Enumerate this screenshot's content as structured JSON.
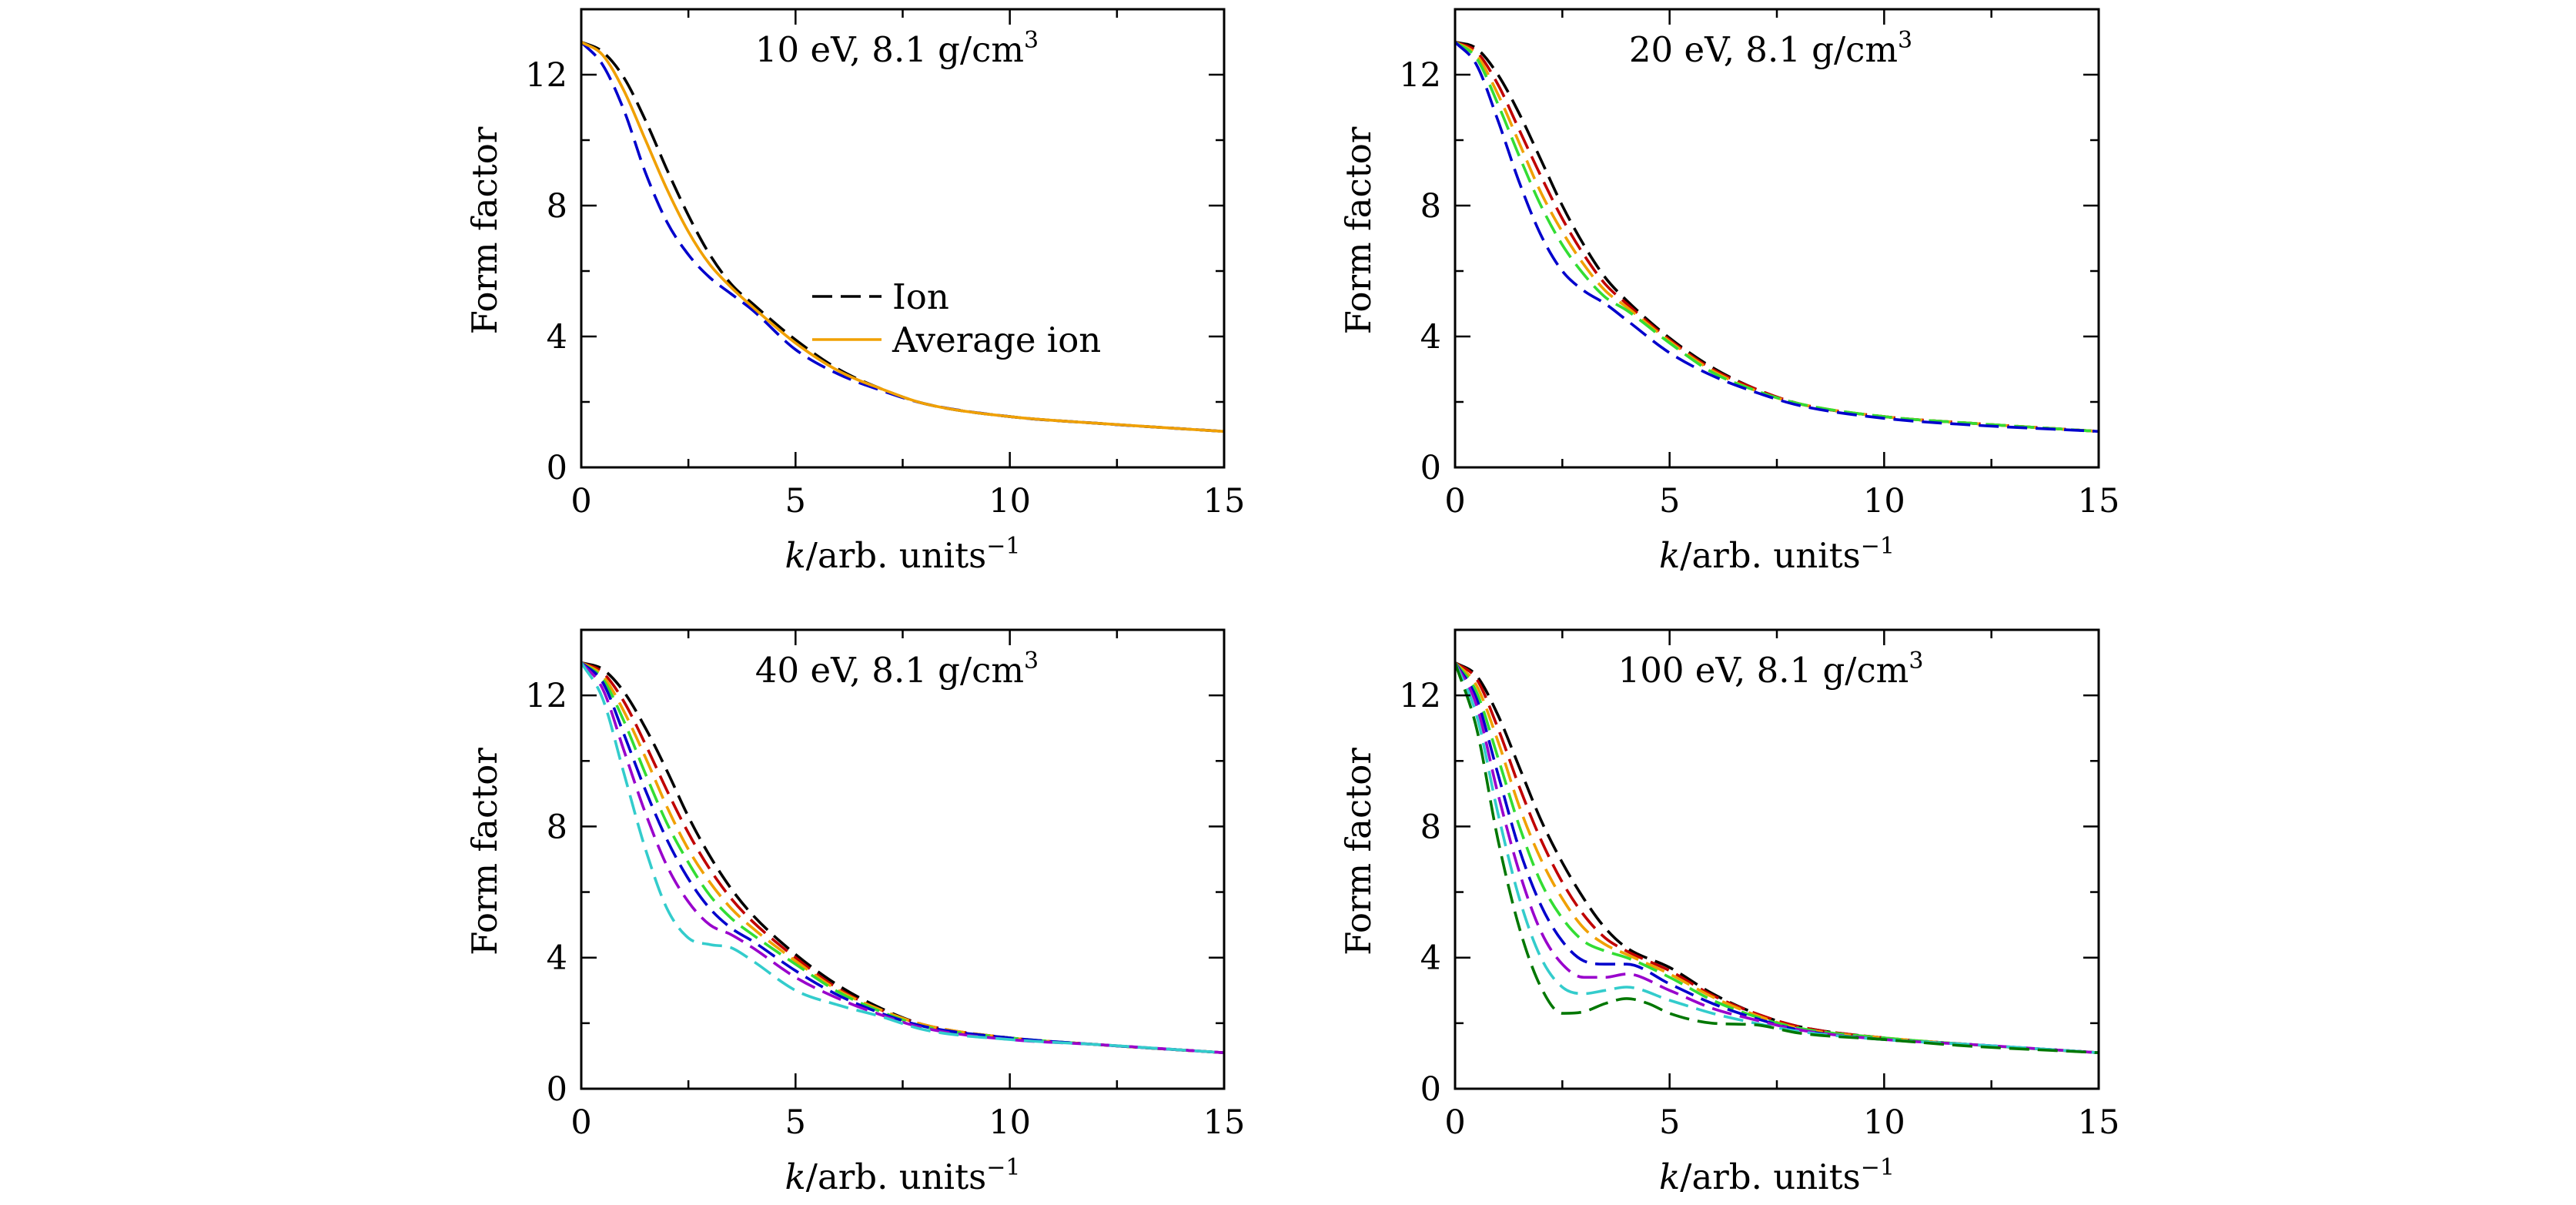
{
  "figure": {
    "legend": {
      "entries": [
        "Ion",
        "Average ion"
      ],
      "placement": "center-right of top-left panel"
    },
    "colors": {
      "black": "#000000",
      "red": "#c00000",
      "orange": "#f0a000",
      "green": "#33dd33",
      "blue": "#0000cc",
      "purple": "#9900cc",
      "cyan": "#33cccc",
      "darkgreen": "#007700"
    }
  },
  "chart_data": [
    {
      "type": "line",
      "title": "10 eV, 8.1 g/cm",
      "title_sup": "3",
      "xlabel": "k",
      "xlabel_rest": "/arb. units",
      "xlabel_sup": "−1",
      "ylabel": "Form factor",
      "xlim": [
        0,
        15
      ],
      "ylim": [
        0,
        14
      ],
      "xticks": [
        "0",
        "5",
        "10",
        "15"
      ],
      "yticks": [
        "0",
        "4",
        "8",
        "12"
      ],
      "grid": false,
      "legend": true,
      "series": [
        {
          "name": "Ion",
          "color": "#000000",
          "style": "dashed",
          "x": [
            0,
            0.5,
            1,
            1.5,
            2,
            2.5,
            3,
            3.5,
            4,
            5,
            6,
            7,
            8,
            10,
            12,
            15
          ],
          "y": [
            13.0,
            12.7,
            11.9,
            10.6,
            9.1,
            7.7,
            6.5,
            5.6,
            5.0,
            3.9,
            3.0,
            2.4,
            1.95,
            1.55,
            1.35,
            1.1
          ]
        },
        {
          "name": "",
          "color": "#0000cc",
          "style": "dashed",
          "x": [
            0,
            0.5,
            1,
            1.5,
            2,
            2.5,
            3,
            3.5,
            4,
            5,
            6,
            7,
            8,
            10,
            12,
            15
          ],
          "y": [
            13.0,
            12.3,
            10.9,
            9.0,
            7.5,
            6.5,
            5.8,
            5.3,
            4.8,
            3.6,
            2.85,
            2.35,
            1.95,
            1.55,
            1.35,
            1.1
          ]
        },
        {
          "name": "Average ion",
          "color": "#f0a000",
          "style": "solid",
          "x": [
            0,
            0.5,
            1,
            1.5,
            2,
            2.5,
            3,
            3.5,
            4,
            5,
            6,
            7,
            8,
            10,
            12,
            15
          ],
          "y": [
            13.0,
            12.6,
            11.5,
            10.0,
            8.5,
            7.2,
            6.2,
            5.5,
            4.9,
            3.8,
            2.95,
            2.4,
            1.95,
            1.55,
            1.35,
            1.1
          ]
        }
      ]
    },
    {
      "type": "line",
      "title": "20 eV, 8.1 g/cm",
      "title_sup": "3",
      "xlabel": "k",
      "xlabel_rest": "/arb. units",
      "xlabel_sup": "−1",
      "ylabel": "Form factor",
      "xlim": [
        0,
        15
      ],
      "ylim": [
        0,
        14
      ],
      "xticks": [
        "0",
        "5",
        "10",
        "15"
      ],
      "yticks": [
        "0",
        "4",
        "8",
        "12"
      ],
      "grid": false,
      "legend": false,
      "series": [
        {
          "name": "",
          "color": "#000000",
          "style": "dashed",
          "x": [
            0,
            0.5,
            1,
            1.5,
            2,
            2.5,
            3,
            3.5,
            4,
            5,
            6,
            7,
            8,
            10,
            12,
            15
          ],
          "y": [
            13.0,
            12.8,
            12.0,
            10.8,
            9.4,
            8.0,
            6.8,
            5.8,
            5.1,
            3.95,
            3.05,
            2.4,
            1.95,
            1.55,
            1.35,
            1.1
          ]
        },
        {
          "name": "",
          "color": "#c00000",
          "style": "dashed",
          "x": [
            0,
            0.5,
            1,
            1.5,
            2,
            2.5,
            3,
            3.5,
            4,
            5,
            6,
            7,
            8,
            10,
            12,
            15
          ],
          "y": [
            13.0,
            12.7,
            11.7,
            10.3,
            8.9,
            7.6,
            6.5,
            5.6,
            5.0,
            3.9,
            3.0,
            2.4,
            1.95,
            1.55,
            1.35,
            1.1
          ]
        },
        {
          "name": "",
          "color": "#f0a000",
          "style": "dashed",
          "x": [
            0,
            0.5,
            1,
            1.5,
            2,
            2.5,
            3,
            3.5,
            4,
            5,
            6,
            7,
            8,
            10,
            12,
            15
          ],
          "y": [
            13.0,
            12.6,
            11.4,
            9.9,
            8.4,
            7.2,
            6.2,
            5.4,
            4.9,
            3.85,
            2.95,
            2.35,
            1.95,
            1.55,
            1.35,
            1.1
          ]
        },
        {
          "name": "",
          "color": "#33dd33",
          "style": "dashed",
          "x": [
            0,
            0.5,
            1,
            1.5,
            2,
            2.5,
            3,
            3.5,
            4,
            5,
            6,
            7,
            8,
            10,
            12,
            15
          ],
          "y": [
            13.0,
            12.5,
            11.1,
            9.5,
            8.0,
            6.8,
            5.9,
            5.2,
            4.8,
            3.8,
            2.9,
            2.35,
            1.95,
            1.55,
            1.35,
            1.1
          ]
        },
        {
          "name": "",
          "color": "#0000cc",
          "style": "dashed",
          "x": [
            0,
            0.5,
            1,
            1.5,
            2,
            2.5,
            3,
            3.5,
            4,
            5,
            6,
            7,
            8,
            10,
            12,
            15
          ],
          "y": [
            13.0,
            12.3,
            10.6,
            8.7,
            7.1,
            6.0,
            5.4,
            5.0,
            4.5,
            3.5,
            2.8,
            2.3,
            1.9,
            1.5,
            1.3,
            1.1
          ]
        }
      ]
    },
    {
      "type": "line",
      "title": "40 eV, 8.1 g/cm",
      "title_sup": "3",
      "xlabel": "k",
      "xlabel_rest": "/arb. units",
      "xlabel_sup": "−1",
      "ylabel": "Form factor",
      "xlim": [
        0,
        15
      ],
      "ylim": [
        0,
        14
      ],
      "xticks": [
        "0",
        "5",
        "10",
        "15"
      ],
      "yticks": [
        "0",
        "4",
        "8",
        "12"
      ],
      "grid": false,
      "legend": false,
      "series": [
        {
          "name": "",
          "color": "#000000",
          "style": "dashed",
          "x": [
            0,
            0.5,
            1,
            1.5,
            2,
            2.5,
            3,
            3.5,
            4,
            5,
            6,
            7,
            8,
            10,
            12,
            15
          ],
          "y": [
            13.0,
            12.8,
            12.1,
            11.0,
            9.7,
            8.3,
            7.1,
            6.1,
            5.3,
            4.1,
            3.15,
            2.45,
            1.95,
            1.55,
            1.35,
            1.1
          ]
        },
        {
          "name": "",
          "color": "#c00000",
          "style": "dashed",
          "x": [
            0,
            0.5,
            1,
            1.5,
            2,
            2.5,
            3,
            3.5,
            4,
            5,
            6,
            7,
            8,
            10,
            12,
            15
          ],
          "y": [
            13.0,
            12.7,
            11.8,
            10.5,
            9.1,
            7.8,
            6.7,
            5.8,
            5.1,
            4.0,
            3.05,
            2.4,
            1.95,
            1.55,
            1.35,
            1.1
          ]
        },
        {
          "name": "",
          "color": "#f0a000",
          "style": "dashed",
          "x": [
            0,
            0.5,
            1,
            1.5,
            2,
            2.5,
            3,
            3.5,
            4,
            5,
            6,
            7,
            8,
            10,
            12,
            15
          ],
          "y": [
            13.0,
            12.6,
            11.5,
            10.1,
            8.6,
            7.3,
            6.3,
            5.5,
            4.9,
            3.9,
            3.0,
            2.4,
            1.95,
            1.55,
            1.35,
            1.1
          ]
        },
        {
          "name": "",
          "color": "#33dd33",
          "style": "dashed",
          "x": [
            0,
            0.5,
            1,
            1.5,
            2,
            2.5,
            3,
            3.5,
            4,
            5,
            6,
            7,
            8,
            10,
            12,
            15
          ],
          "y": [
            13.0,
            12.5,
            11.2,
            9.6,
            8.1,
            6.9,
            5.9,
            5.2,
            4.7,
            3.8,
            2.95,
            2.35,
            1.9,
            1.55,
            1.35,
            1.1
          ]
        },
        {
          "name": "",
          "color": "#0000cc",
          "style": "dashed",
          "x": [
            0,
            0.5,
            1,
            1.5,
            2,
            2.5,
            3,
            3.5,
            4,
            5,
            6,
            7,
            8,
            10,
            12,
            15
          ],
          "y": [
            13.0,
            12.4,
            10.8,
            9.1,
            7.6,
            6.4,
            5.5,
            4.9,
            4.5,
            3.6,
            2.85,
            2.3,
            1.9,
            1.55,
            1.35,
            1.1
          ]
        },
        {
          "name": "",
          "color": "#9900cc",
          "style": "dashed",
          "x": [
            0,
            0.5,
            1,
            1.5,
            2,
            2.5,
            3,
            3.5,
            4,
            5,
            6,
            7,
            8,
            10,
            12,
            15
          ],
          "y": [
            13.0,
            12.2,
            10.3,
            8.4,
            6.8,
            5.7,
            5.0,
            4.7,
            4.3,
            3.4,
            2.75,
            2.25,
            1.85,
            1.5,
            1.35,
            1.1
          ]
        },
        {
          "name": "",
          "color": "#33cccc",
          "style": "dashed",
          "x": [
            0,
            0.5,
            1,
            1.5,
            2,
            2.5,
            3,
            3.5,
            4,
            5,
            6,
            7,
            8,
            10,
            12,
            15
          ],
          "y": [
            13.0,
            11.9,
            9.6,
            7.3,
            5.5,
            4.6,
            4.4,
            4.3,
            3.9,
            3.0,
            2.55,
            2.2,
            1.8,
            1.5,
            1.35,
            1.1
          ]
        }
      ]
    },
    {
      "type": "line",
      "title": "100 eV, 8.1 g/cm",
      "title_sup": "3",
      "xlabel": "k",
      "xlabel_rest": "/arb. units",
      "xlabel_sup": "−1",
      "ylabel": "Form factor",
      "xlim": [
        0,
        15
      ],
      "ylim": [
        0,
        14
      ],
      "xticks": [
        "0",
        "5",
        "10",
        "15"
      ],
      "yticks": [
        "0",
        "4",
        "8",
        "12"
      ],
      "grid": false,
      "legend": false,
      "series": [
        {
          "name": "",
          "color": "#000000",
          "style": "dashed",
          "x": [
            0,
            0.5,
            1,
            1.5,
            2,
            2.5,
            3,
            3.5,
            4,
            5,
            6,
            7,
            8,
            10,
            12,
            15
          ],
          "y": [
            13.0,
            12.6,
            11.4,
            9.8,
            8.2,
            6.9,
            5.8,
            4.9,
            4.3,
            3.7,
            2.9,
            2.3,
            1.9,
            1.55,
            1.35,
            1.1
          ]
        },
        {
          "name": "",
          "color": "#c00000",
          "style": "dashed",
          "x": [
            0,
            0.5,
            1,
            1.5,
            2,
            2.5,
            3,
            3.5,
            4,
            5,
            6,
            7,
            8,
            10,
            12,
            15
          ],
          "y": [
            13.0,
            12.5,
            11.0,
            9.2,
            7.6,
            6.3,
            5.3,
            4.6,
            4.2,
            3.6,
            2.85,
            2.3,
            1.9,
            1.55,
            1.35,
            1.1
          ]
        },
        {
          "name": "",
          "color": "#f0a000",
          "style": "dashed",
          "x": [
            0,
            0.5,
            1,
            1.5,
            2,
            2.5,
            3,
            3.5,
            4,
            5,
            6,
            7,
            8,
            10,
            12,
            15
          ],
          "y": [
            13.0,
            12.3,
            10.6,
            8.6,
            7.0,
            5.8,
            4.9,
            4.4,
            4.1,
            3.5,
            2.8,
            2.25,
            1.85,
            1.55,
            1.35,
            1.1
          ]
        },
        {
          "name": "",
          "color": "#33dd33",
          "style": "dashed",
          "x": [
            0,
            0.5,
            1,
            1.5,
            2,
            2.5,
            3,
            3.5,
            4,
            5,
            6,
            7,
            8,
            10,
            12,
            15
          ],
          "y": [
            13.0,
            12.1,
            10.1,
            8.0,
            6.3,
            5.2,
            4.5,
            4.2,
            4.0,
            3.4,
            2.7,
            2.2,
            1.85,
            1.55,
            1.35,
            1.1
          ]
        },
        {
          "name": "",
          "color": "#0000cc",
          "style": "dashed",
          "x": [
            0,
            0.5,
            1,
            1.5,
            2,
            2.5,
            3,
            3.5,
            4,
            5,
            6,
            7,
            8,
            10,
            12,
            15
          ],
          "y": [
            13.0,
            11.9,
            9.6,
            7.3,
            5.6,
            4.5,
            3.9,
            3.8,
            3.8,
            3.2,
            2.6,
            2.15,
            1.8,
            1.5,
            1.35,
            1.1
          ]
        },
        {
          "name": "",
          "color": "#9900cc",
          "style": "dashed",
          "x": [
            0,
            0.5,
            1,
            1.5,
            2,
            2.5,
            3,
            3.5,
            4,
            5,
            6,
            7,
            8,
            10,
            12,
            15
          ],
          "y": [
            13.0,
            11.7,
            9.0,
            6.6,
            4.8,
            3.8,
            3.4,
            3.4,
            3.5,
            3.0,
            2.45,
            2.1,
            1.8,
            1.5,
            1.35,
            1.1
          ]
        },
        {
          "name": "",
          "color": "#33cccc",
          "style": "dashed",
          "x": [
            0,
            0.5,
            1,
            1.5,
            2,
            2.5,
            3,
            3.5,
            4,
            5,
            6,
            7,
            8,
            10,
            12,
            15
          ],
          "y": [
            13.0,
            11.4,
            8.4,
            5.8,
            4.0,
            3.1,
            2.9,
            3.0,
            3.1,
            2.7,
            2.3,
            2.0,
            1.75,
            1.5,
            1.35,
            1.1
          ]
        },
        {
          "name": "",
          "color": "#007700",
          "style": "dashed",
          "x": [
            0,
            0.5,
            1,
            1.5,
            2,
            2.5,
            3,
            3.5,
            4,
            4.5,
            5,
            6,
            7,
            8,
            10,
            12,
            15
          ],
          "y": [
            13.0,
            11.0,
            7.6,
            4.9,
            3.1,
            2.3,
            2.35,
            2.6,
            2.75,
            2.6,
            2.3,
            2.0,
            1.95,
            1.7,
            1.5,
            1.3,
            1.1
          ]
        }
      ]
    }
  ]
}
